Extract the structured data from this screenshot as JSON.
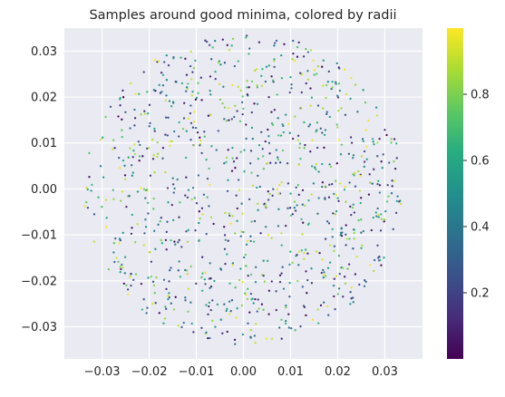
{
  "chart_data": {
    "type": "scatter",
    "title": "Samples around good minima, colored by radii",
    "xlabel": "",
    "ylabel": "",
    "xlim": [
      -0.038,
      0.038
    ],
    "ylim": [
      -0.037,
      0.035
    ],
    "xticks": [
      -0.03,
      -0.02,
      -0.01,
      0.0,
      0.01,
      0.02,
      0.03
    ],
    "xtick_labels": [
      "−0.03",
      "−0.02",
      "−0.01",
      "0.00",
      "0.01",
      "0.02",
      "0.03"
    ],
    "yticks": [
      -0.03,
      -0.02,
      -0.01,
      0.0,
      0.01,
      0.02,
      0.03
    ],
    "ytick_labels": [
      "−0.03",
      "−0.02",
      "−0.01",
      "0.00",
      "0.01",
      "0.02",
      "0.03"
    ],
    "grid": true,
    "background": "#eaeaf2",
    "colormap": "viridis",
    "colorbar": {
      "range": [
        0.0,
        1.0
      ],
      "ticks": [
        0.2,
        0.4,
        0.6,
        0.8
      ],
      "tick_labels": [
        "0.2",
        "0.4",
        "0.6",
        "0.8"
      ]
    },
    "sample_cloud": {
      "shape": "disk",
      "center": [
        0.0,
        0.0
      ],
      "radius": 0.034,
      "count": 1000,
      "color_value": "uniform random in [0, 1]"
    }
  }
}
